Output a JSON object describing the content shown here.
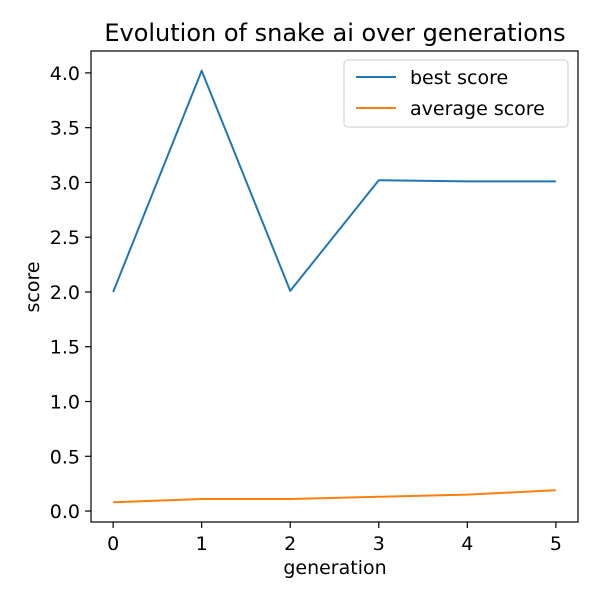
{
  "chart_data": {
    "type": "line",
    "title": "Evolution of snake ai over generations",
    "xlabel": "generation",
    "ylabel": "score",
    "x": [
      0,
      1,
      2,
      3,
      4,
      5
    ],
    "xlim": [
      -0.25,
      5.25
    ],
    "ylim": [
      -0.1,
      4.2
    ],
    "xticks": [
      "0",
      "1",
      "2",
      "3",
      "4",
      "5"
    ],
    "yticks": [
      "0.0",
      "0.5",
      "1.0",
      "1.5",
      "2.0",
      "2.5",
      "3.0",
      "3.5",
      "4.0"
    ],
    "grid": false,
    "legend_position": "top-right",
    "series": [
      {
        "name": "best score",
        "color": "#1f77b4",
        "values": [
          2.0,
          4.02,
          2.01,
          3.02,
          3.01,
          3.01
        ]
      },
      {
        "name": "average score",
        "color": "#ff7f0e",
        "values": [
          0.08,
          0.11,
          0.11,
          0.13,
          0.15,
          0.19
        ]
      }
    ]
  }
}
